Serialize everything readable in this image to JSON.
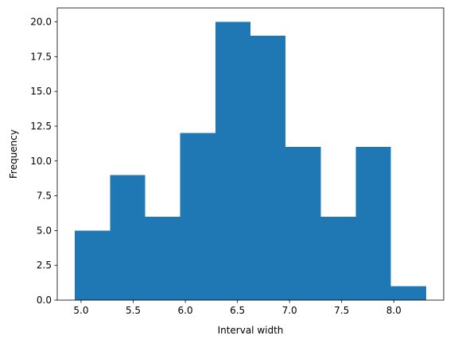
{
  "chart_data": {
    "type": "bar",
    "subtype": "histogram",
    "title": "",
    "xlabel": "Interval width",
    "ylabel": "Frequency",
    "bin_edges": [
      4.94,
      5.277,
      5.614,
      5.951,
      6.288,
      6.625,
      6.962,
      7.299,
      7.636,
      7.973,
      8.31
    ],
    "values": [
      5,
      9,
      6,
      12,
      20,
      19,
      11,
      6,
      11,
      1
    ],
    "xlim": [
      4.7715,
      8.4785
    ],
    "ylim": [
      0,
      21
    ],
    "xticks": [
      5.0,
      5.5,
      6.0,
      6.5,
      7.0,
      7.5,
      8.0
    ],
    "xtick_labels": [
      "5.0",
      "5.5",
      "6.0",
      "6.5",
      "7.0",
      "7.5",
      "8.0"
    ],
    "yticks": [
      0,
      2.5,
      5,
      7.5,
      10,
      12.5,
      15,
      17.5,
      20
    ],
    "ytick_labels": [
      "0.0",
      "2.5",
      "5.0",
      "7.5",
      "10.0",
      "12.5",
      "15.0",
      "17.5",
      "20.0"
    ],
    "bar_color": "#1f77b4",
    "grid": false,
    "legend": "none"
  }
}
